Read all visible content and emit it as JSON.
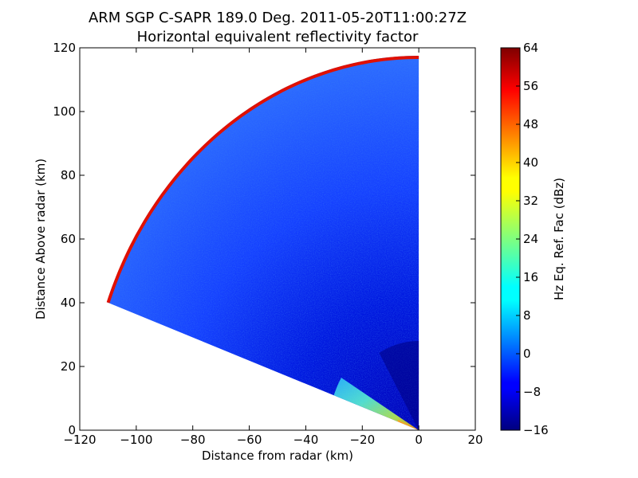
{
  "chart_data": {
    "type": "heatmap",
    "title": "ARM SGP C-SAPR 189.0 Deg. 2011-05-20T11:00:27Z",
    "subtitle": "Horizontal equivalent reflectivity factor",
    "xlabel": "Distance from radar (km)",
    "ylabel": "Distance Above radar  (km)",
    "xlim": [
      -120,
      20
    ],
    "ylim": [
      0,
      120
    ],
    "x_ticks": [
      "−120",
      "−100",
      "−80",
      "−60",
      "−40",
      "−20",
      "0",
      "20"
    ],
    "y_ticks": [
      "0",
      "20",
      "40",
      "60",
      "80",
      "100",
      "120"
    ],
    "colorbar": {
      "label": "Hz Eq. Ref. Fac (dBz)",
      "range": [
        -16,
        64
      ],
      "ticks": [
        "−16",
        "−8",
        "0",
        "8",
        "16",
        "24",
        "32",
        "40",
        "48",
        "56",
        "64"
      ],
      "colormap": "jet"
    },
    "sector": {
      "max_range_km": 117.5,
      "elevation_from_deg": 20,
      "elevation_to_deg": 90,
      "description_values": {
        "far_field_dbz": -4,
        "near_radar_upper_dbz": -13,
        "ground_clutter_dbz": [
          10,
          40
        ],
        "outer_ring_dbz": 62
      }
    }
  },
  "colors": {
    "jet_dark_red": "#800000",
    "jet_red": "#ff0000",
    "jet_yellow": "#ffff00",
    "jet_cyan": "#00ffff",
    "jet_blue": "#0000ff",
    "jet_dark_blue": "#00007f"
  }
}
